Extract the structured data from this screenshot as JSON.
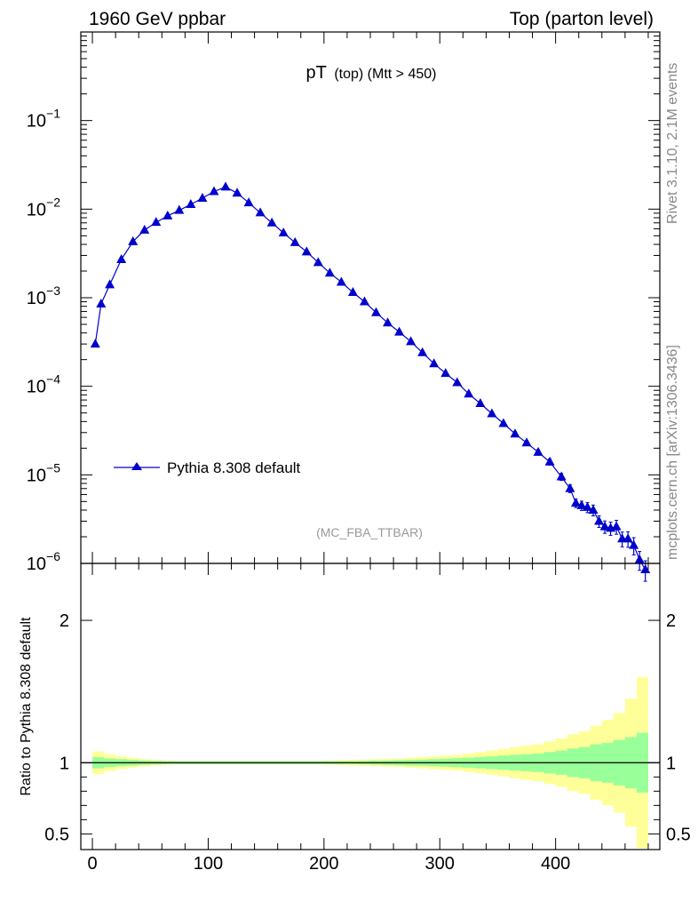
{
  "header": {
    "left": "1960 GeV ppbar",
    "right": "Top (parton level)"
  },
  "side": {
    "rivet": "Rivet 3.1.10,  2.1M events",
    "source": "mcplots.cern.ch [arXiv:1306.3436]"
  },
  "colors": {
    "series": "#0000cc",
    "band_inner": "#99ff99",
    "band_outer": "#ffff99",
    "watermark": "#999999",
    "side_text": "#888888"
  },
  "chart_data": [
    {
      "type": "line",
      "title_main": "pT",
      "title_sub": "(top) (Mtt > 450)",
      "watermark": "(MC_FBA_TTBAR)",
      "yscale": "log",
      "xlim": [
        -10,
        490
      ],
      "ylim": [
        1e-06,
        1
      ],
      "y_ticks": [
        {
          "base": "10",
          "exp": "−1"
        },
        {
          "base": "10",
          "exp": "−2"
        },
        {
          "base": "10",
          "exp": "−3"
        },
        {
          "base": "10",
          "exp": "−4"
        },
        {
          "base": "10",
          "exp": "−5"
        },
        {
          "base": "10",
          "exp": "−6"
        }
      ],
      "legend": {
        "position": "lower-left",
        "label": "Pythia 8.308 default"
      },
      "series": [
        {
          "name": "Pythia 8.308 default",
          "marker": "triangle",
          "x": [
            2.5,
            7.5,
            15,
            25,
            35,
            45,
            55,
            65,
            75,
            85,
            95,
            105,
            115,
            125,
            135,
            145,
            155,
            165,
            175,
            185,
            195,
            205,
            215,
            225,
            235,
            245,
            255,
            265,
            275,
            285,
            295,
            305,
            315,
            325,
            335,
            345,
            355,
            365,
            375,
            385,
            395,
            405,
            412.5,
            417.5,
            422.5,
            427.5,
            432.5,
            437.5,
            442.5,
            447.5,
            452.5,
            457.5,
            462.5,
            467.5,
            472.5,
            477.5
          ],
          "y": [
            0.0003,
            0.00085,
            0.0014,
            0.0027,
            0.0043,
            0.0058,
            0.0071,
            0.0084,
            0.0097,
            0.0113,
            0.0133,
            0.0158,
            0.0178,
            0.0152,
            0.0118,
            0.0091,
            0.007,
            0.0054,
            0.0042,
            0.0033,
            0.0025,
            0.0019,
            0.0015,
            0.00115,
            0.0009,
            0.00068,
            0.00052,
            0.00041,
            0.00032,
            0.00024,
            0.00018,
            0.00014,
            0.00011,
            8.2e-05,
            6.4e-05,
            4.9e-05,
            3.8e-05,
            2.9e-05,
            2.3e-05,
            1.8e-05,
            1.4e-05,
            9.5e-06,
            7e-06,
            4.8e-06,
            4.5e-06,
            4.3e-06,
            4e-06,
            3e-06,
            2.6e-06,
            2.5e-06,
            2.6e-06,
            1.9e-06,
            1.9e-06,
            1.6e-06,
            1.1e-06,
            8.5e-07
          ],
          "yerr_frac": [
            0.02,
            0.02,
            0.02,
            0.02,
            0.02,
            0.02,
            0.02,
            0.02,
            0.02,
            0.02,
            0.02,
            0.02,
            0.02,
            0.02,
            0.02,
            0.02,
            0.02,
            0.02,
            0.02,
            0.02,
            0.02,
            0.02,
            0.02,
            0.02,
            0.02,
            0.02,
            0.02,
            0.02,
            0.02,
            0.03,
            0.03,
            0.03,
            0.03,
            0.04,
            0.04,
            0.05,
            0.05,
            0.06,
            0.06,
            0.07,
            0.08,
            0.09,
            0.1,
            0.11,
            0.12,
            0.13,
            0.14,
            0.15,
            0.16,
            0.17,
            0.18,
            0.19,
            0.2,
            0.22,
            0.24,
            0.26
          ]
        }
      ]
    },
    {
      "type": "area",
      "ylabel": "Ratio to Pythia 8.308 default",
      "xlim": [
        -10,
        490
      ],
      "ylim": [
        0.39,
        2.4
      ],
      "x_ticks": [
        "0",
        "100",
        "200",
        "300",
        "400"
      ],
      "y_ticks": [
        "2",
        "1",
        "0.5"
      ],
      "reference_line": 1,
      "bands": {
        "edges": [
          0,
          10,
          20,
          30,
          40,
          50,
          60,
          70,
          80,
          90,
          100,
          110,
          120,
          130,
          140,
          150,
          160,
          170,
          180,
          190,
          200,
          210,
          220,
          230,
          240,
          250,
          260,
          270,
          280,
          290,
          300,
          310,
          320,
          330,
          340,
          350,
          360,
          370,
          380,
          390,
          400,
          410,
          420,
          430,
          440,
          450,
          460,
          470,
          480
        ],
        "inner": [
          0.04,
          0.03,
          0.025,
          0.02,
          0.015,
          0.012,
          0.01,
          0.01,
          0.01,
          0.01,
          0.01,
          0.01,
          0.01,
          0.01,
          0.01,
          0.01,
          0.01,
          0.01,
          0.01,
          0.01,
          0.01,
          0.01,
          0.01,
          0.012,
          0.014,
          0.016,
          0.018,
          0.02,
          0.022,
          0.025,
          0.028,
          0.031,
          0.035,
          0.04,
          0.045,
          0.05,
          0.055,
          0.06,
          0.065,
          0.075,
          0.085,
          0.1,
          0.11,
          0.13,
          0.14,
          0.16,
          0.18,
          0.21
        ],
        "outer": [
          0.08,
          0.06,
          0.045,
          0.035,
          0.025,
          0.02,
          0.015,
          0.012,
          0.012,
          0.012,
          0.012,
          0.012,
          0.012,
          0.012,
          0.012,
          0.012,
          0.012,
          0.012,
          0.012,
          0.012,
          0.015,
          0.017,
          0.02,
          0.022,
          0.025,
          0.027,
          0.03,
          0.035,
          0.04,
          0.045,
          0.05,
          0.055,
          0.065,
          0.075,
          0.085,
          0.095,
          0.11,
          0.12,
          0.13,
          0.15,
          0.17,
          0.2,
          0.22,
          0.26,
          0.3,
          0.35,
          0.45,
          0.6
        ]
      }
    }
  ]
}
